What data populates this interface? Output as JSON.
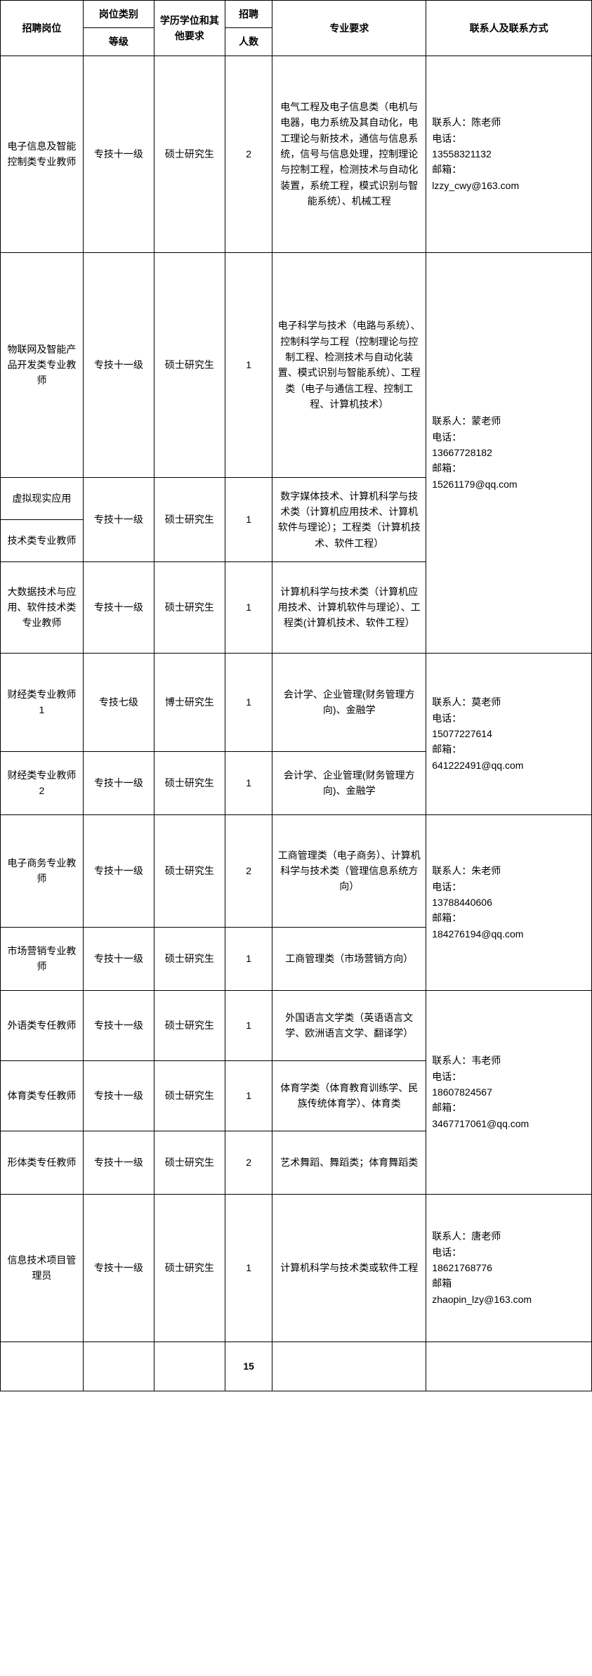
{
  "headers": {
    "position": "招聘岗位",
    "category": "岗位类别",
    "level": "等级",
    "education": "学历学位和其他要求",
    "recruit": "招聘",
    "count": "人数",
    "requirements": "专业要求",
    "contact": "联系人及联系方式"
  },
  "rows": [
    {
      "position": "电子信息及智能控制类专业教师",
      "level": "专技十一级",
      "education": "硕士研究生",
      "count": "2",
      "requirements": "电气工程及电子信息类（电机与电器，电力系统及其自动化，电工理论与新技术，通信与信息系统，信号与信息处理，控制理论与控制工程，检测技术与自动化装置，系统工程，模式识别与智能系统）、机械工程",
      "contact": "联系人：陈老师\n电话：\n13558321132\n邮箱：\nlzzy_cwy@163.com"
    },
    {
      "position": "物联网及智能产品开发类专业教师",
      "level": "专技十一级",
      "education": "硕士研究生",
      "count": "1",
      "requirements": "电子科学与技术（电路与系统）、控制科学与工程（控制理论与控制工程、检测技术与自动化装置、模式识别与智能系统）、工程类（电子与通信工程、控制工程、计算机技术）"
    },
    {
      "position_line1": "虚拟现实应用",
      "position_line2": "技术类专业教师",
      "level": "专技十一级",
      "education": "硕士研究生",
      "count": "1",
      "requirements": "数字媒体技术、计算机科学与技术类（计算机应用技术、计算机软件与理论）；工程类（计算机技术、软件工程）"
    },
    {
      "position": "大数据技术与应用、软件技术类专业教师",
      "level": "专技十一级",
      "education": "硕士研究生",
      "count": "1",
      "requirements": "计算机科学与技术类（计算机应用技术、计算机软件与理论）、工程类(计算机技术、软件工程）",
      "contact_merged": "联系人：蒙老师\n电话：\n13667728182\n邮箱：\n15261179@qq.com"
    },
    {
      "position": "财经类专业教师1",
      "level": "专技七级",
      "education": "博士研究生",
      "count": "1",
      "requirements": "会计学、企业管理(财务管理方向)、金融学"
    },
    {
      "position": "财经类专业教师2",
      "level": "专技十一级",
      "education": "硕士研究生",
      "count": "1",
      "requirements": "会计学、企业管理(财务管理方向)、金融学",
      "contact_merged": "联系人：莫老师\n电话：\n15077227614\n邮箱：\n641222491@qq.com"
    },
    {
      "position": "电子商务专业教师",
      "level": "专技十一级",
      "education": "硕士研究生",
      "count": "2",
      "requirements": "工商管理类（电子商务）、计算机科学与技术类（管理信息系统方向）"
    },
    {
      "position": "市场营销专业教师",
      "level": "专技十一级",
      "education": "硕士研究生",
      "count": "1",
      "requirements": "工商管理类（市场营销方向）",
      "contact_merged": "联系人：朱老师\n电话：\n13788440606\n邮箱：\n184276194@qq.com"
    },
    {
      "position": "外语类专任教师",
      "level": "专技十一级",
      "education": "硕士研究生",
      "count": "1",
      "requirements": "外国语言文学类（英语语言文学、欧洲语言文学、翻译学）"
    },
    {
      "position": "体育类专任教师",
      "level": "专技十一级",
      "education": "硕士研究生",
      "count": "1",
      "requirements": "体育学类（体育教育训练学、民族传统体育学）、体育类"
    },
    {
      "position": "形体类专任教师",
      "level": "专技十一级",
      "education": "硕士研究生",
      "count": "2",
      "requirements": "艺术舞蹈、舞蹈类；体育舞蹈类",
      "contact_merged": "联系人：韦老师\n电话：\n18607824567\n邮箱：\n3467717061@qq.com"
    },
    {
      "position": "信息技术项目管理员",
      "level": "专技十一级",
      "education": "硕士研究生",
      "count": "1",
      "requirements": "计算机科学与技术类或软件工程",
      "contact": "联系人：唐老师\n电话：\n18621768776\n邮箱\nzhaopin_lzy@163.com"
    }
  ],
  "total": "15"
}
